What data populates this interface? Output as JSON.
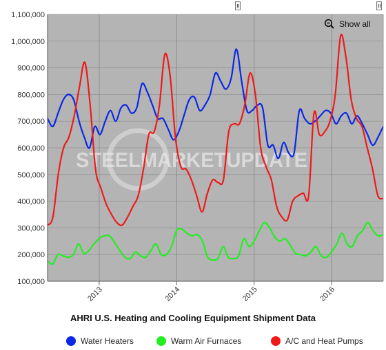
{
  "title": "AHRI U.S. Heating and Cooling Equipment Shipment Data",
  "show_all_label": "Show all",
  "watermark": "STEELMARKETUPDATE",
  "colors": {
    "plot_background": "#b4b4b4",
    "water_heaters": "#0a28e6",
    "warm_air_furnaces": "#22ee22",
    "ac_heat_pumps": "#ee1a1a"
  },
  "icons": {
    "zoom": "zoom-out-icon"
  },
  "chart_data": {
    "type": "line",
    "title": "AHRI U.S. Heating and Cooling Equipment Shipment Data",
    "xlabel": "",
    "ylabel": "",
    "ylim": [
      100000,
      1100000
    ],
    "y_ticks": [
      "100,000",
      "200,000",
      "300,000",
      "400,000",
      "500,000",
      "600,000",
      "700,000",
      "800,000",
      "900,000",
      "1,000,000",
      "1,100,000"
    ],
    "x_ticks": [
      "2013",
      "2014",
      "2015",
      "2016"
    ],
    "grid": true,
    "legend_position": "bottom",
    "x_start": "2012-05",
    "x_end": "2016-09",
    "series": [
      {
        "name": "Water Heaters",
        "color": "#0a28e6",
        "values": [
          710000,
          680000,
          730000,
          780000,
          800000,
          780000,
          700000,
          640000,
          600000,
          680000,
          650000,
          700000,
          740000,
          700000,
          750000,
          760000,
          730000,
          750000,
          840000,
          810000,
          760000,
          710000,
          710000,
          670000,
          630000,
          660000,
          720000,
          780000,
          790000,
          740000,
          760000,
          800000,
          880000,
          850000,
          820000,
          860000,
          970000,
          850000,
          740000,
          740000,
          760000,
          750000,
          610000,
          610000,
          560000,
          620000,
          580000,
          580000,
          740000,
          710000,
          690000,
          700000,
          720000,
          740000,
          730000,
          690000,
          720000,
          730000,
          690000,
          720000,
          690000,
          650000,
          610000,
          640000,
          680000
        ]
      },
      {
        "name": "Warm Air Furnaces",
        "color": "#22ee22",
        "values": [
          175000,
          165000,
          200000,
          195000,
          190000,
          200000,
          240000,
          205000,
          215000,
          240000,
          260000,
          270000,
          270000,
          245000,
          215000,
          190000,
          185000,
          210000,
          195000,
          190000,
          215000,
          240000,
          200000,
          200000,
          230000,
          290000,
          295000,
          280000,
          270000,
          275000,
          250000,
          190000,
          180000,
          185000,
          230000,
          190000,
          185000,
          195000,
          260000,
          230000,
          250000,
          290000,
          320000,
          300000,
          265000,
          250000,
          260000,
          235000,
          205000,
          200000,
          195000,
          210000,
          230000,
          195000,
          190000,
          210000,
          240000,
          280000,
          240000,
          230000,
          270000,
          290000,
          320000,
          290000,
          270000,
          275000
        ]
      },
      {
        "name": "A/C and Heat Pumps",
        "color": "#ee1a1a",
        "values": [
          310000,
          340000,
          500000,
          600000,
          640000,
          720000,
          830000,
          920000,
          760000,
          520000,
          450000,
          390000,
          350000,
          320000,
          310000,
          340000,
          380000,
          420000,
          520000,
          650000,
          660000,
          760000,
          950000,
          870000,
          640000,
          530000,
          520000,
          480000,
          420000,
          360000,
          430000,
          480000,
          470000,
          480000,
          660000,
          690000,
          690000,
          760000,
          880000,
          800000,
          600000,
          530000,
          480000,
          380000,
          340000,
          330000,
          400000,
          420000,
          430000,
          420000,
          730000,
          650000,
          660000,
          700000,
          800000,
          1020000,
          940000,
          780000,
          710000,
          680000,
          600000,
          520000,
          420000,
          410000
        ]
      }
    ]
  }
}
